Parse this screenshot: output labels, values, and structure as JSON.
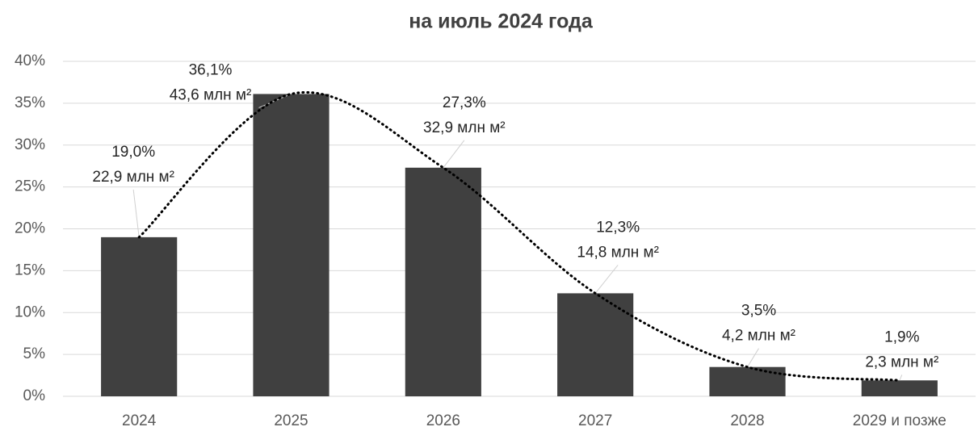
{
  "chart_data": {
    "type": "bar",
    "title": "на июль 2024 года",
    "categories": [
      "2024",
      "2025",
      "2026",
      "2027",
      "2028",
      "2029 и позже"
    ],
    "values": [
      19.0,
      36.1,
      27.3,
      12.3,
      3.5,
      1.9
    ],
    "value_labels": [
      "19,0%",
      "36,1%",
      "27,3%",
      "12,3%",
      "3,5%",
      "1,9%"
    ],
    "area_labels": [
      "22,9 млн м²",
      "43,6 млн м²",
      "32,9 млн м²",
      "14,8 млн м²",
      "4,2 млн м²",
      "2,3 млн м²"
    ],
    "color": "#404040",
    "ylim": [
      0,
      40
    ],
    "yticks": [
      {
        "value": 0,
        "label": "0%"
      },
      {
        "value": 5,
        "label": "5%"
      },
      {
        "value": 10,
        "label": "10%"
      },
      {
        "value": 15,
        "label": "15%"
      },
      {
        "value": 20,
        "label": "20%"
      },
      {
        "value": 25,
        "label": "25%"
      },
      {
        "value": 30,
        "label": "30%"
      },
      {
        "value": 35,
        "label": "35%"
      },
      {
        "value": 40,
        "label": "40%"
      }
    ],
    "grid": true,
    "trendline": true
  }
}
